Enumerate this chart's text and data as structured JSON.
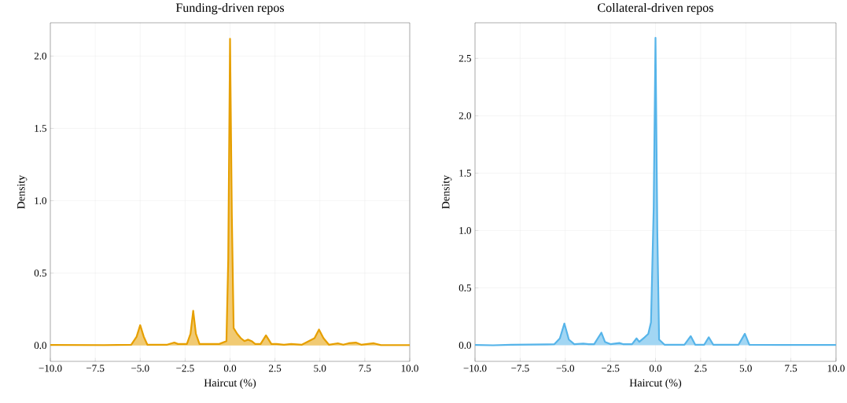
{
  "chart_data": [
    {
      "type": "area",
      "title": "Funding-driven repos",
      "xlabel": "Haircut (%)",
      "ylabel": "Density",
      "xlim": [
        -10,
        10
      ],
      "ylim": [
        -0.11,
        2.23
      ],
      "xticks": [
        {
          "value": -10,
          "label": "−10.0"
        },
        {
          "value": -7.5,
          "label": "−7.5"
        },
        {
          "value": -5,
          "label": "−5.0"
        },
        {
          "value": -2.5,
          "label": "−2.5"
        },
        {
          "value": 0,
          "label": "0.0"
        },
        {
          "value": 2.5,
          "label": "2.5"
        },
        {
          "value": 5,
          "label": "5.0"
        },
        {
          "value": 7.5,
          "label": "7.5"
        },
        {
          "value": 10,
          "label": "10.0"
        }
      ],
      "yticks": [
        {
          "value": 0,
          "label": "0.0"
        },
        {
          "value": 0.5,
          "label": "0.5"
        },
        {
          "value": 1,
          "label": "1.0"
        },
        {
          "value": 1.5,
          "label": "1.5"
        },
        {
          "value": 2,
          "label": "2.0"
        }
      ],
      "grid": true,
      "series": [
        {
          "color": "#e69f00",
          "x": [
            -10,
            -7,
            -5.5,
            -5.2,
            -5,
            -4.8,
            -4.6,
            -3.5,
            -3.1,
            -2.9,
            -2.4,
            -2.2,
            -2.05,
            -1.9,
            -1.7,
            -0.6,
            -0.2,
            -0.1,
            0,
            0.1,
            0.2,
            0.4,
            0.6,
            0.8,
            1.0,
            1.2,
            1.4,
            1.7,
            2.0,
            2.3,
            2.6,
            3,
            3.4,
            4,
            4.7,
            4.95,
            5.2,
            5.5,
            6,
            6.3,
            6.6,
            7,
            7.3,
            8,
            8.4,
            10
          ],
          "values": [
            0.003,
            0.002,
            0.005,
            0.06,
            0.14,
            0.06,
            0.005,
            0.005,
            0.02,
            0.01,
            0.01,
            0.08,
            0.24,
            0.08,
            0.01,
            0.01,
            0.03,
            0.6,
            2.12,
            0.9,
            0.12,
            0.08,
            0.05,
            0.03,
            0.04,
            0.03,
            0.01,
            0.01,
            0.07,
            0.01,
            0.01,
            0.005,
            0.01,
            0.005,
            0.05,
            0.11,
            0.05,
            0.005,
            0.015,
            0.005,
            0.015,
            0.02,
            0.005,
            0.015,
            0.002,
            0.002
          ]
        }
      ]
    },
    {
      "type": "area",
      "title": "Collateral-driven repos",
      "xlabel": "Haircut (%)",
      "ylabel": "Density",
      "xlim": [
        -10,
        10
      ],
      "ylim": [
        -0.14,
        2.81
      ],
      "xticks": [
        {
          "value": -10,
          "label": "−10.0"
        },
        {
          "value": -7.5,
          "label": "−7.5"
        },
        {
          "value": -5,
          "label": "−5.0"
        },
        {
          "value": -2.5,
          "label": "−2.5"
        },
        {
          "value": 0,
          "label": "0.0"
        },
        {
          "value": 2.5,
          "label": "2.5"
        },
        {
          "value": 5,
          "label": "5.0"
        },
        {
          "value": 7.5,
          "label": "7.5"
        },
        {
          "value": 10,
          "label": "10.0"
        }
      ],
      "yticks": [
        {
          "value": 0,
          "label": "0.0"
        },
        {
          "value": 0.5,
          "label": "0.5"
        },
        {
          "value": 1,
          "label": "1.0"
        },
        {
          "value": 1.5,
          "label": "1.5"
        },
        {
          "value": 2,
          "label": "2.0"
        },
        {
          "value": 2.5,
          "label": "2.5"
        }
      ],
      "grid": true,
      "series": [
        {
          "color": "#56b4e9",
          "x": [
            -10,
            -9,
            -8,
            -7,
            -6,
            -5.6,
            -5.3,
            -5.05,
            -4.8,
            -4.5,
            -4,
            -3.7,
            -3.4,
            -3.2,
            -3.0,
            -2.8,
            -2.5,
            -2,
            -1.8,
            -1.3,
            -1.05,
            -0.9,
            -0.6,
            -0.4,
            -0.25,
            -0.1,
            0,
            0.1,
            0.2,
            0.5,
            1.6,
            1.95,
            2.2,
            2.7,
            2.95,
            3.2,
            4.6,
            4.95,
            5.2,
            7,
            10
          ],
          "values": [
            0.003,
            0.0,
            0.005,
            0.006,
            0.008,
            0.01,
            0.06,
            0.19,
            0.05,
            0.01,
            0.015,
            0.01,
            0.01,
            0.06,
            0.11,
            0.03,
            0.01,
            0.02,
            0.01,
            0.01,
            0.06,
            0.03,
            0.07,
            0.1,
            0.2,
            1.2,
            2.68,
            1.0,
            0.05,
            0.005,
            0.005,
            0.08,
            0.005,
            0.005,
            0.07,
            0.005,
            0.005,
            0.1,
            0.005,
            0.003,
            0.003
          ]
        }
      ]
    }
  ]
}
